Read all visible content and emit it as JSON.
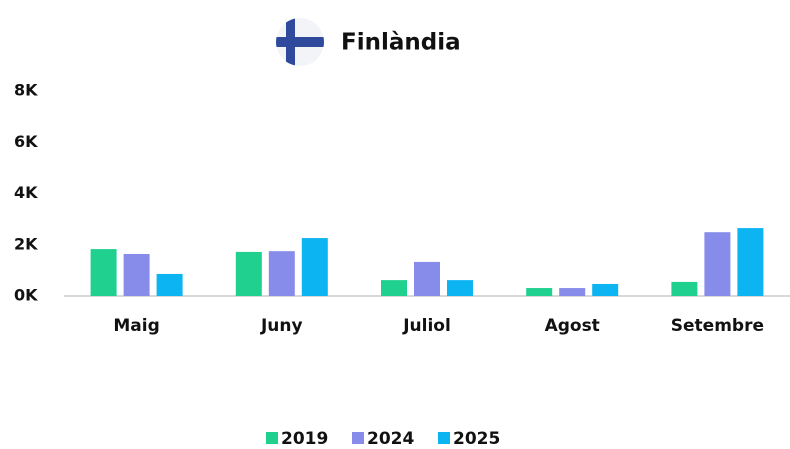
{
  "chart_data": {
    "type": "bar",
    "title": "Finlàndia",
    "categories": [
      "Maig",
      "Juny",
      "Juliol",
      "Agost",
      "Setembre"
    ],
    "series": [
      {
        "name": "2019",
        "color": "#1fd08f",
        "values": [
          1830,
          1720,
          620,
          310,
          550
        ]
      },
      {
        "name": "2024",
        "color": "#878cea",
        "values": [
          1640,
          1750,
          1330,
          310,
          2490
        ]
      },
      {
        "name": "2025",
        "color": "#0cb4f2",
        "values": [
          860,
          2260,
          620,
          470,
          2650
        ]
      }
    ],
    "ylim": [
      0,
      8000
    ],
    "yticks": [
      {
        "value": 0,
        "label": "0K"
      },
      {
        "value": 2000,
        "label": "2K"
      },
      {
        "value": 4000,
        "label": "4K"
      },
      {
        "value": 6000,
        "label": "6K"
      },
      {
        "value": 8000,
        "label": "8K"
      }
    ],
    "grid": false
  }
}
